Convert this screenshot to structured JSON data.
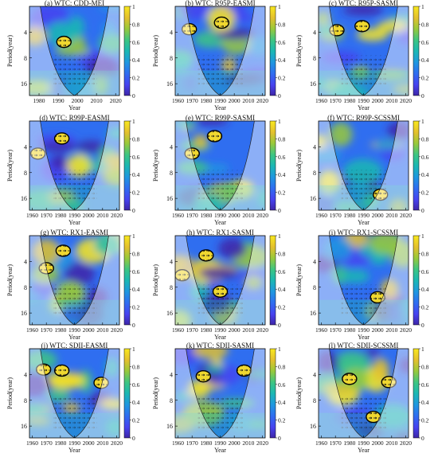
{
  "figure": {
    "panels": [
      {
        "title": "(a) WTC: CDD-MEI"
      },
      {
        "title": "(b) WTC: R95P-EASMI"
      },
      {
        "title": "(c) WTC: R95P-SASMI"
      },
      {
        "title": "(d) WTC: R99P-EASMI"
      },
      {
        "title": "(e) WTC: R99P-SASMI"
      },
      {
        "title": "(f) WTC: R99P-SCSSMI"
      },
      {
        "title": "(g) WTC: RX1-EASMI"
      },
      {
        "title": "(h) WTC: RX1-SASMI"
      },
      {
        "title": "(i) WTC: RX1-SCSSMI"
      },
      {
        "title": "(j) WTC: SDII-EASMI"
      },
      {
        "title": "(k) WTC: SDII-SASMI"
      },
      {
        "title": "(l) WTC: SDII-SCSSMI"
      }
    ]
  },
  "chart_data": {
    "type": "heatmap",
    "description_kind": "wavelet coherence",
    "xlabel": "Year",
    "ylabel": "Period(year)",
    "xticks": [
      1960,
      1970,
      1980,
      1990,
      2000,
      2010,
      2020
    ],
    "xticks_panel_a": [
      1980,
      1990,
      2000,
      2010,
      2020
    ],
    "yticks": [
      4,
      8,
      16
    ],
    "colorbar_ticks": [
      0,
      0.2,
      0.4,
      0.6,
      0.8,
      1
    ],
    "colorbar_range": [
      0,
      1
    ],
    "colormap": [
      "#3e26a8",
      "#4743f0",
      "#2f6ef0",
      "#1f97e0",
      "#1bb8b3",
      "#3cc583",
      "#99c93a",
      "#e3c02e",
      "#f9e81e"
    ],
    "cone_of_influence": true,
    "significant_regions": [
      {
        "panel": "a",
        "regions": [
          {
            "x": 1993,
            "period": 5.2
          }
        ]
      },
      {
        "panel": "b",
        "regions": [
          {
            "x": 1968,
            "period": 3.7
          },
          {
            "x": 1991,
            "period": 3.1
          }
        ]
      },
      {
        "panel": "c",
        "regions": [
          {
            "x": 1971,
            "period": 3.8
          },
          {
            "x": 1989,
            "period": 3.4
          }
        ]
      },
      {
        "panel": "d",
        "regions": [
          {
            "x": 1964,
            "period": 4.8
          },
          {
            "x": 1981,
            "period": 3.2
          }
        ]
      },
      {
        "panel": "e",
        "regions": [
          {
            "x": 1970,
            "period": 4.8
          },
          {
            "x": 1986,
            "period": 3.0
          }
        ]
      },
      {
        "panel": "f",
        "regions": [
          {
            "x": 2002,
            "period": 14.5
          }
        ]
      },
      {
        "panel": "g",
        "regions": [
          {
            "x": 1970,
            "period": 4.8
          },
          {
            "x": 1982,
            "period": 3.0
          }
        ]
      },
      {
        "panel": "h",
        "regions": [
          {
            "x": 1963,
            "period": 5.8
          },
          {
            "x": 1990,
            "period": 9.0
          },
          {
            "x": 1980,
            "period": 3.4
          }
        ]
      },
      {
        "panel": "i",
        "regions": [
          {
            "x": 2000,
            "period": 10.5
          }
        ]
      },
      {
        "panel": "j",
        "regions": [
          {
            "x": 1968,
            "period": 3.5
          },
          {
            "x": 1981,
            "period": 3.6
          },
          {
            "x": 2009,
            "period": 5.0
          }
        ]
      },
      {
        "panel": "k",
        "regions": [
          {
            "x": 1978,
            "period": 4.2
          },
          {
            "x": 2007,
            "period": 3.6
          }
        ]
      },
      {
        "panel": "l",
        "regions": [
          {
            "x": 1980,
            "period": 4.5
          },
          {
            "x": 2008,
            "period": 4.9
          },
          {
            "x": 1997,
            "period": 12.5
          }
        ]
      }
    ]
  }
}
